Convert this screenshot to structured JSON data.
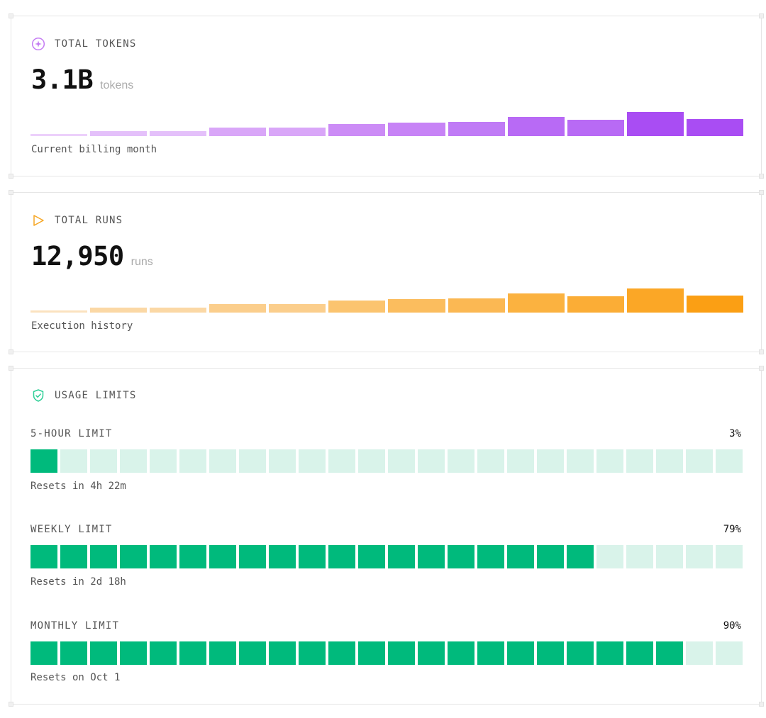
{
  "tokens": {
    "title": "TOTAL TOKENS",
    "icon": "sparkle-icon",
    "value": "3.1B",
    "unit": "tokens",
    "caption": "Current billing month",
    "levels": [
      0.08,
      0.2,
      0.2,
      0.36,
      0.36,
      0.5,
      0.56,
      0.6,
      0.8,
      0.68,
      1.0,
      0.7
    ],
    "colors": [
      "#ecd0fb",
      "#e4c0fa",
      "#e4c0fa",
      "#d9a6f8",
      "#d9a6f8",
      "#cc8cf6",
      "#c783f6",
      "#c07bf6",
      "#b86af5",
      "#b86af5",
      "#a94df3",
      "#a94df3"
    ]
  },
  "runs": {
    "title": "TOTAL RUNS",
    "icon": "play-icon",
    "value": "12,950",
    "unit": "runs",
    "caption": "Execution history",
    "levels": [
      0.08,
      0.2,
      0.2,
      0.36,
      0.36,
      0.5,
      0.56,
      0.6,
      0.8,
      0.68,
      1.0,
      0.7
    ],
    "colors": [
      "#fbe2bf",
      "#fbd8a5",
      "#fbd8a5",
      "#fbce8c",
      "#fbce8c",
      "#fbc46f",
      "#fbbd5e",
      "#fbb853",
      "#fbb240",
      "#fbad36",
      "#fba726",
      "#fb9f14"
    ]
  },
  "limits": {
    "title": "USAGE LIMITS",
    "icon": "shield-check-icon",
    "segments": 24,
    "color_on": "#00ba7c",
    "color_off": "#d9f3ea",
    "items": [
      {
        "label": "5-HOUR LIMIT",
        "percent_label": "3%",
        "filled": 1,
        "reset": "Resets in 4h 22m"
      },
      {
        "label": "WEEKLY LIMIT",
        "percent_label": "79%",
        "filled": 19,
        "reset": "Resets in 2d 18h"
      },
      {
        "label": "MONTHLY LIMIT",
        "percent_label": "90%",
        "filled": 22,
        "reset": "Resets on Oct 1"
      }
    ]
  }
}
